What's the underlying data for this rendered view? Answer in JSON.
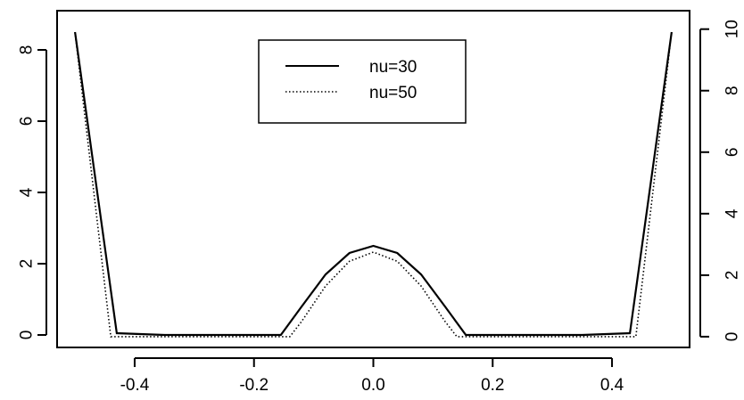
{
  "chart_data": {
    "type": "line",
    "title": "",
    "xlabel": "",
    "ylabel": "",
    "xlim": [
      -0.53,
      0.53
    ],
    "ylim": [
      -0.35,
      9.1
    ],
    "ylim_right": [
      -0.35,
      10.6
    ],
    "x_ticks": [
      -0.4,
      -0.2,
      0.0,
      0.2,
      0.4
    ],
    "x_tick_labels": [
      "-0.4",
      "-0.2",
      "0.0",
      "0.2",
      "0.4"
    ],
    "y_ticks": [
      0,
      2,
      4,
      6,
      8
    ],
    "y_tick_labels": [
      "0",
      "2",
      "4",
      "6",
      "8"
    ],
    "y_ticks_right": [
      0,
      2,
      4,
      6,
      8,
      10
    ],
    "y_tick_labels_right": [
      "0",
      "2",
      "4",
      "6",
      "8",
      "10"
    ],
    "grid": false,
    "legend": {
      "position": "top-center",
      "entries": [
        "nu=30",
        "nu=50"
      ]
    },
    "series": [
      {
        "name": "nu=30",
        "style": "solid",
        "axis": "left",
        "x": [
          -0.5,
          -0.43,
          -0.35,
          -0.25,
          -0.18,
          -0.155,
          -0.12,
          -0.08,
          -0.04,
          0.0,
          0.04,
          0.08,
          0.12,
          0.155,
          0.18,
          0.25,
          0.35,
          0.43,
          0.5
        ],
        "y": [
          8.5,
          0.05,
          0.0,
          0.0,
          0.0,
          0.0,
          0.8,
          1.7,
          2.3,
          2.5,
          2.3,
          1.7,
          0.8,
          0.0,
          0.0,
          0.0,
          0.0,
          0.05,
          8.5
        ]
      },
      {
        "name": "nu=50",
        "style": "dotted",
        "axis": "right",
        "x": [
          -0.5,
          -0.44,
          -0.42,
          -0.3,
          -0.2,
          -0.14,
          -0.12,
          -0.08,
          -0.04,
          0.0,
          0.04,
          0.08,
          0.12,
          0.14,
          0.2,
          0.3,
          0.42,
          0.44,
          0.5
        ],
        "y": [
          9.9,
          0.0,
          0.0,
          0.0,
          0.0,
          0.0,
          0.5,
          1.65,
          2.45,
          2.75,
          2.45,
          1.65,
          0.5,
          0.0,
          0.0,
          0.0,
          0.0,
          0.0,
          9.9
        ]
      }
    ]
  }
}
